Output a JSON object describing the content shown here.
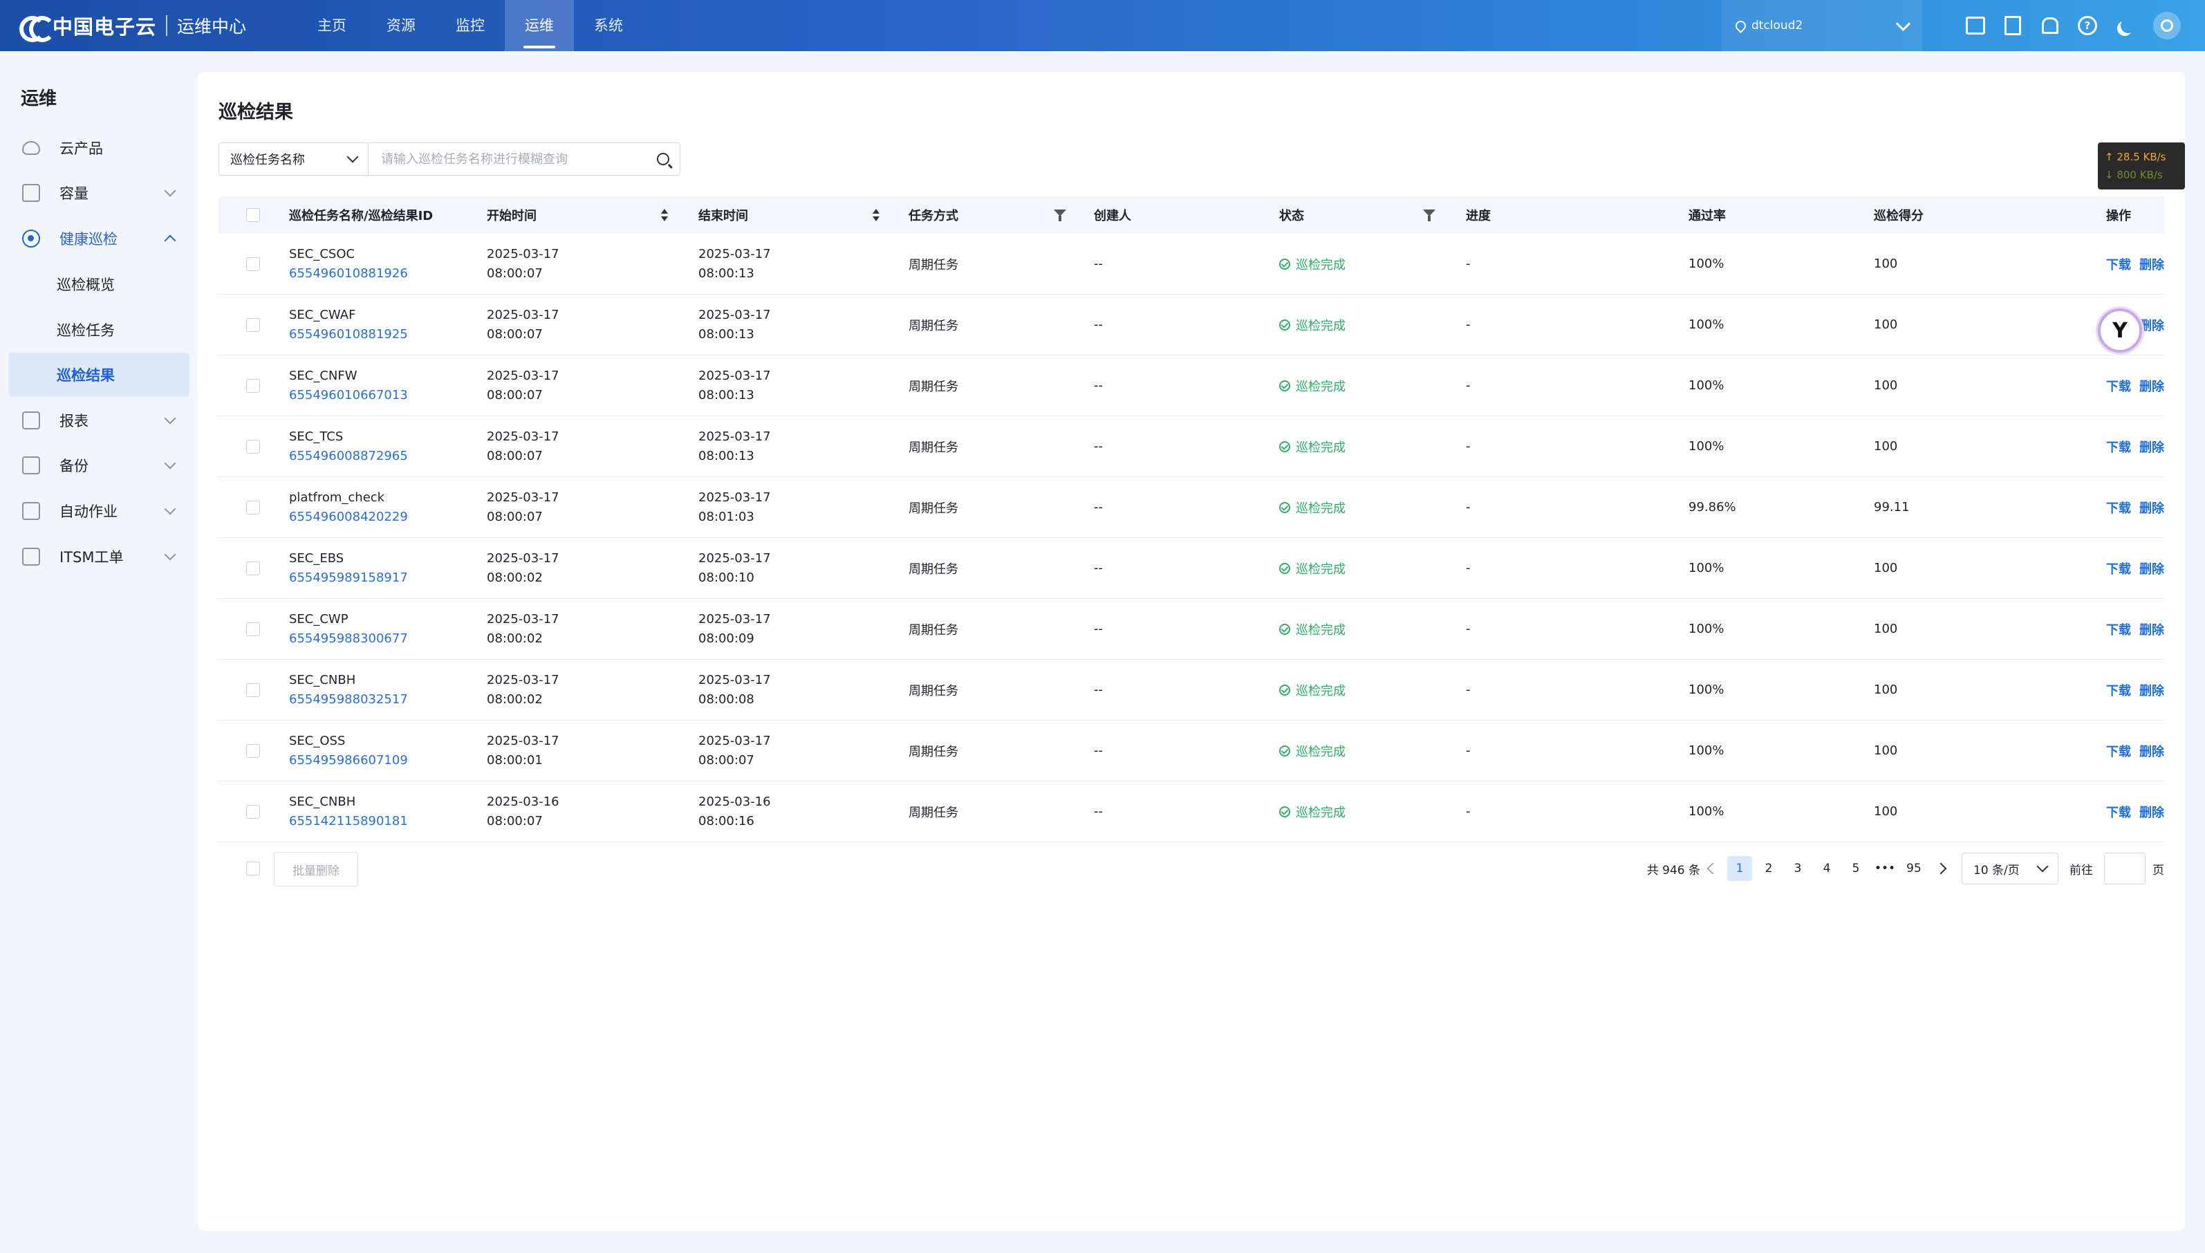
{
  "header": {
    "logo_text": "中国电子云",
    "logo_sub": "运维中心",
    "nav": [
      {
        "label": "主页"
      },
      {
        "label": "资源"
      },
      {
        "label": "监控"
      },
      {
        "label": "运维"
      },
      {
        "label": "系统"
      }
    ],
    "active_nav": "运维",
    "region": "dtcloud2"
  },
  "sidebar": {
    "title": "运维",
    "items": [
      {
        "label": "云产品"
      },
      {
        "label": "容量"
      },
      {
        "label": "健康巡检"
      },
      {
        "label": "报表"
      },
      {
        "label": "备份"
      },
      {
        "label": "自动作业"
      },
      {
        "label": "ITSM工单"
      }
    ],
    "sub_items": [
      {
        "label": "巡检概览"
      },
      {
        "label": "巡检任务"
      },
      {
        "label": "巡检结果"
      }
    ]
  },
  "main": {
    "title": "巡检结果",
    "search": {
      "select_value": "巡检任务名称",
      "placeholder": "请输入巡检任务名称进行模糊查询"
    },
    "speed": {
      "up": "↑ 28.5 KB/s",
      "down": "↓ 800 KB/s"
    },
    "columns": [
      "巡检任务名称/巡检结果ID",
      "开始时间",
      "结束时间",
      "任务方式",
      "创建人",
      "状态",
      "进度",
      "通过率",
      "巡检得分",
      "操作"
    ],
    "rows": [
      {
        "name": "SEC_CSOC",
        "id": "655496010881926",
        "start_date": "2025-03-17",
        "start_time": "08:00:07",
        "end_date": "2025-03-17",
        "end_time": "08:00:13",
        "mode": "周期任务",
        "creator": "--",
        "status": "巡检完成",
        "progress": "-",
        "pass": "100%",
        "score": "100"
      },
      {
        "name": "SEC_CWAF",
        "id": "655496010881925",
        "start_date": "2025-03-17",
        "start_time": "08:00:07",
        "end_date": "2025-03-17",
        "end_time": "08:00:13",
        "mode": "周期任务",
        "creator": "--",
        "status": "巡检完成",
        "progress": "-",
        "pass": "100%",
        "score": "100"
      },
      {
        "name": "SEC_CNFW",
        "id": "655496010667013",
        "start_date": "2025-03-17",
        "start_time": "08:00:07",
        "end_date": "2025-03-17",
        "end_time": "08:00:13",
        "mode": "周期任务",
        "creator": "--",
        "status": "巡检完成",
        "progress": "-",
        "pass": "100%",
        "score": "100"
      },
      {
        "name": "SEC_TCS",
        "id": "655496008872965",
        "start_date": "2025-03-17",
        "start_time": "08:00:07",
        "end_date": "2025-03-17",
        "end_time": "08:00:13",
        "mode": "周期任务",
        "creator": "--",
        "status": "巡检完成",
        "progress": "-",
        "pass": "100%",
        "score": "100"
      },
      {
        "name": "platfrom_check",
        "id": "655496008420229",
        "start_date": "2025-03-17",
        "start_time": "08:00:07",
        "end_date": "2025-03-17",
        "end_time": "08:01:03",
        "mode": "周期任务",
        "creator": "--",
        "status": "巡检完成",
        "progress": "-",
        "pass": "99.86%",
        "score": "99.11"
      },
      {
        "name": "SEC_EBS",
        "id": "655495989158917",
        "start_date": "2025-03-17",
        "start_time": "08:00:02",
        "end_date": "2025-03-17",
        "end_time": "08:00:10",
        "mode": "周期任务",
        "creator": "--",
        "status": "巡检完成",
        "progress": "-",
        "pass": "100%",
        "score": "100"
      },
      {
        "name": "SEC_CWP",
        "id": "655495988300677",
        "start_date": "2025-03-17",
        "start_time": "08:00:02",
        "end_date": "2025-03-17",
        "end_time": "08:00:09",
        "mode": "周期任务",
        "creator": "--",
        "status": "巡检完成",
        "progress": "-",
        "pass": "100%",
        "score": "100"
      },
      {
        "name": "SEC_CNBH",
        "id": "655495988032517",
        "start_date": "2025-03-17",
        "start_time": "08:00:02",
        "end_date": "2025-03-17",
        "end_time": "08:00:08",
        "mode": "周期任务",
        "creator": "--",
        "status": "巡检完成",
        "progress": "-",
        "pass": "100%",
        "score": "100"
      },
      {
        "name": "SEC_OSS",
        "id": "655495986607109",
        "start_date": "2025-03-17",
        "start_time": "08:00:01",
        "end_date": "2025-03-17",
        "end_time": "08:00:07",
        "mode": "周期任务",
        "creator": "--",
        "status": "巡检完成",
        "progress": "-",
        "pass": "100%",
        "score": "100"
      },
      {
        "name": "SEC_CNBH",
        "id": "655142115890181",
        "start_date": "2025-03-16",
        "start_time": "08:00:07",
        "end_date": "2025-03-16",
        "end_time": "08:00:16",
        "mode": "周期任务",
        "creator": "--",
        "status": "巡检完成",
        "progress": "-",
        "pass": "100%",
        "score": "100"
      }
    ],
    "row_actions": {
      "download": "下载",
      "delete": "删除"
    },
    "footer": {
      "bulk_delete": "批量删除",
      "total": "共 946 条",
      "pages": [
        "1",
        "2",
        "3",
        "4",
        "5",
        "•••",
        "95"
      ],
      "current_page": "1",
      "page_size": "10 条/页",
      "goto_prefix": "前往",
      "goto_suffix": "页"
    }
  },
  "colors": {
    "brand": "#2a63c6",
    "link": "#2a6fd6",
    "success": "#2fae6a"
  }
}
